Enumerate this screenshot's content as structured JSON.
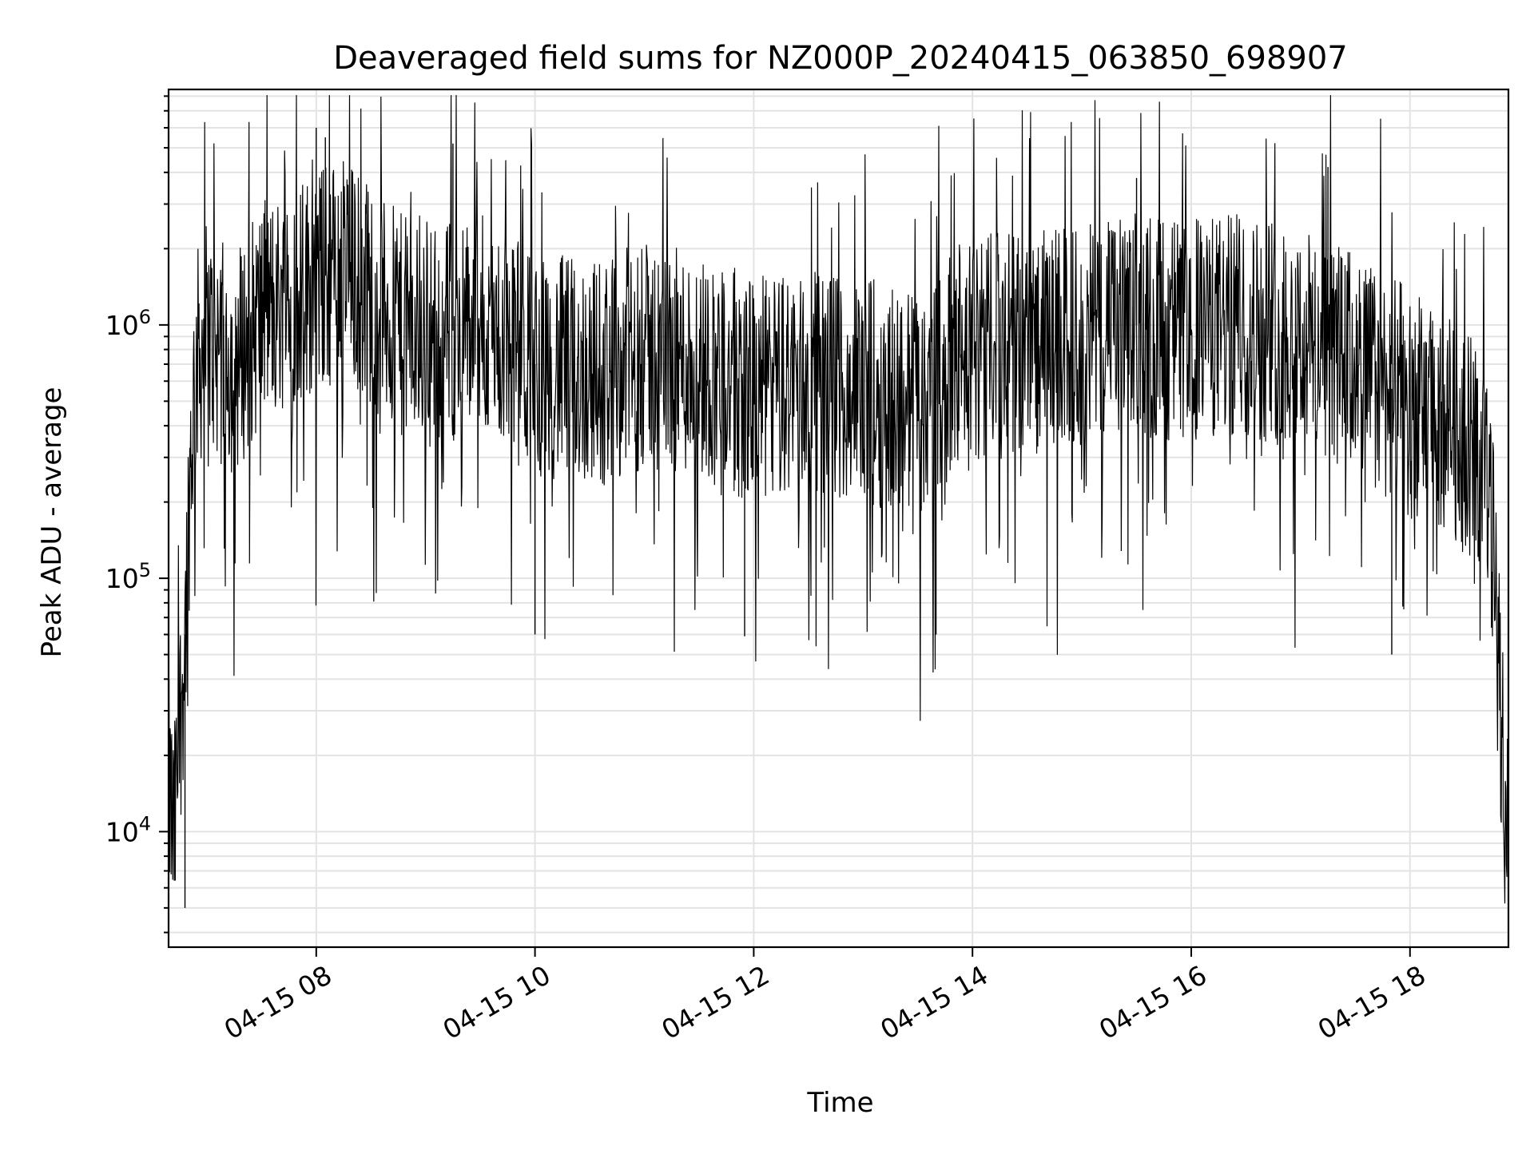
{
  "chart_data": {
    "type": "line",
    "title": "Deaveraged field sums for NZ000P_20240415_063850_698907",
    "xlabel": "Time",
    "ylabel": "Peak ADU - average",
    "y_scale": "log",
    "grid": true,
    "legend": "none",
    "x_range": [
      "04-15 06:39",
      "04-15 18:54"
    ],
    "ylim": [
      3500,
      8500000
    ],
    "x_ticks": [
      {
        "label": "04-15 08",
        "time": "04-15 08:00"
      },
      {
        "label": "04-15 10",
        "time": "04-15 10:00"
      },
      {
        "label": "04-15 12",
        "time": "04-15 12:00"
      },
      {
        "label": "04-15 14",
        "time": "04-15 14:00"
      },
      {
        "label": "04-15 16",
        "time": "04-15 16:00"
      },
      {
        "label": "04-15 18",
        "time": "04-15 18:00"
      }
    ],
    "y_ticks": [
      {
        "base": "10",
        "exp": "4",
        "value": 10000
      },
      {
        "base": "10",
        "exp": "5",
        "value": 100000
      },
      {
        "base": "10",
        "exp": "6",
        "value": 1000000
      }
    ],
    "series": [
      {
        "color": "#000000",
        "description_points": "approximate envelope of the noisy signal (time, value)",
        "points": [
          [
            "04-15 06:39",
            15000
          ],
          [
            "04-15 06:42",
            9000
          ],
          [
            "04-15 06:45",
            25000
          ],
          [
            "04-15 06:48",
            60000
          ],
          [
            "04-15 06:51",
            300000
          ],
          [
            "04-15 06:54",
            700000
          ],
          [
            "04-15 07:00",
            900000
          ],
          [
            "04-15 07:15",
            700000
          ],
          [
            "04-15 07:30",
            1100000
          ],
          [
            "04-15 07:45",
            1300000
          ],
          [
            "04-15 08:00",
            1500000
          ],
          [
            "04-15 08:15",
            1700000
          ],
          [
            "04-15 08:30",
            1300000
          ],
          [
            "04-15 08:45",
            1000000
          ],
          [
            "04-15 09:00",
            900000
          ],
          [
            "04-15 09:30",
            1000000
          ],
          [
            "04-15 10:00",
            700000
          ],
          [
            "04-15 10:30",
            650000
          ],
          [
            "04-15 11:00",
            750000
          ],
          [
            "04-15 11:30",
            700000
          ],
          [
            "04-15 12:00",
            550000
          ],
          [
            "04-15 12:30",
            600000
          ],
          [
            "04-15 13:00",
            550000
          ],
          [
            "04-15 13:30",
            500000
          ],
          [
            "04-15 14:00",
            800000
          ],
          [
            "04-15 14:30",
            850000
          ],
          [
            "04-15 15:00",
            900000
          ],
          [
            "04-15 15:30",
            1000000
          ],
          [
            "04-15 16:00",
            950000
          ],
          [
            "04-15 16:30",
            1000000
          ],
          [
            "04-15 17:00",
            900000
          ],
          [
            "04-15 17:30",
            700000
          ],
          [
            "04-15 18:00",
            500000
          ],
          [
            "04-15 18:30",
            350000
          ],
          [
            "04-15 18:40",
            300000
          ],
          [
            "04-15 18:45",
            150000
          ],
          [
            "04-15 18:50",
            30000
          ],
          [
            "04-15 18:54",
            7000
          ]
        ],
        "extreme_peaks": [
          [
            "04-15 08:00",
            6000000
          ],
          [
            "04-15 08:05",
            5500000
          ],
          [
            "04-15 09:15",
            5200000
          ],
          [
            "04-15 17:15",
            4200000
          ],
          [
            "04-15 15:30",
            3800000
          ]
        ],
        "extreme_dips": [
          [
            "04-15 06:48",
            5000
          ],
          [
            "04-15 10:00",
            60000
          ],
          [
            "04-15 11:55",
            59000
          ],
          [
            "04-15 13:40",
            60000
          ],
          [
            "04-15 17:50",
            50000
          ],
          [
            "04-15 18:54",
            6500
          ]
        ]
      }
    ]
  }
}
